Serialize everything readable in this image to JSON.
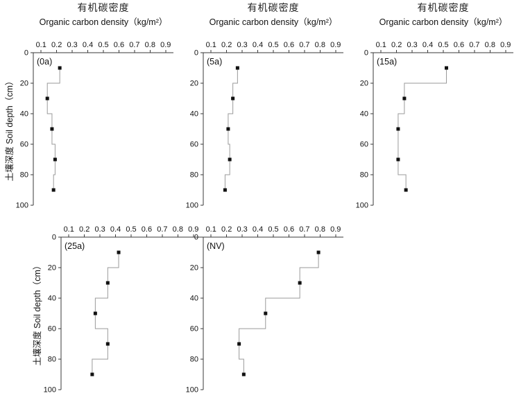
{
  "figure": {
    "background": "#ffffff",
    "axis_color": "#3a3a3a",
    "line_color": "#9a9a9a",
    "marker_color": "#111111",
    "title_cn": "有机碳密度",
    "title_en": "Organic  carbon density（kg/m²）",
    "ylabel": "土壤深度 Soil depth（cm）"
  },
  "chart_data": {
    "type": "line",
    "style": "step-depth-profile",
    "title": "Organic carbon density（kg/m²） / 有机碳密度",
    "xlabel": "Organic carbon density (kg/m²)",
    "ylabel": "Soil depth (cm) / 土壤深度",
    "xlim": [
      0.05,
      0.95
    ],
    "ylim": [
      0,
      100
    ],
    "x_ticks": [
      0.1,
      0.2,
      0.3,
      0.4,
      0.5,
      0.6,
      0.7,
      0.8,
      0.9
    ],
    "y_ticks": [
      0,
      20,
      40,
      60,
      80,
      100
    ],
    "x_axis_position": "top",
    "y_axis_inverted": true,
    "grid": false,
    "legend": "none",
    "depths_cm": [
      10,
      30,
      50,
      70,
      90
    ],
    "series": [
      {
        "name": "(0a)",
        "values": [
          0.22,
          0.14,
          0.17,
          0.19,
          0.18
        ],
        "row": 0,
        "col": 0,
        "show_title": true
      },
      {
        "name": "(5a)",
        "values": [
          0.27,
          0.24,
          0.21,
          0.22,
          0.19
        ],
        "row": 0,
        "col": 1,
        "show_title": true
      },
      {
        "name": "(15a)",
        "values": [
          0.52,
          0.25,
          0.21,
          0.21,
          0.26
        ],
        "row": 0,
        "col": 2,
        "show_title": true
      },
      {
        "name": "(25a)",
        "values": [
          0.42,
          0.35,
          0.27,
          0.35,
          0.25
        ],
        "row": 1,
        "col": 0,
        "show_title": false
      },
      {
        "name": "(NV)",
        "values": [
          0.79,
          0.67,
          0.45,
          0.28,
          0.31
        ],
        "row": 1,
        "col": 1,
        "show_title": false
      }
    ]
  }
}
